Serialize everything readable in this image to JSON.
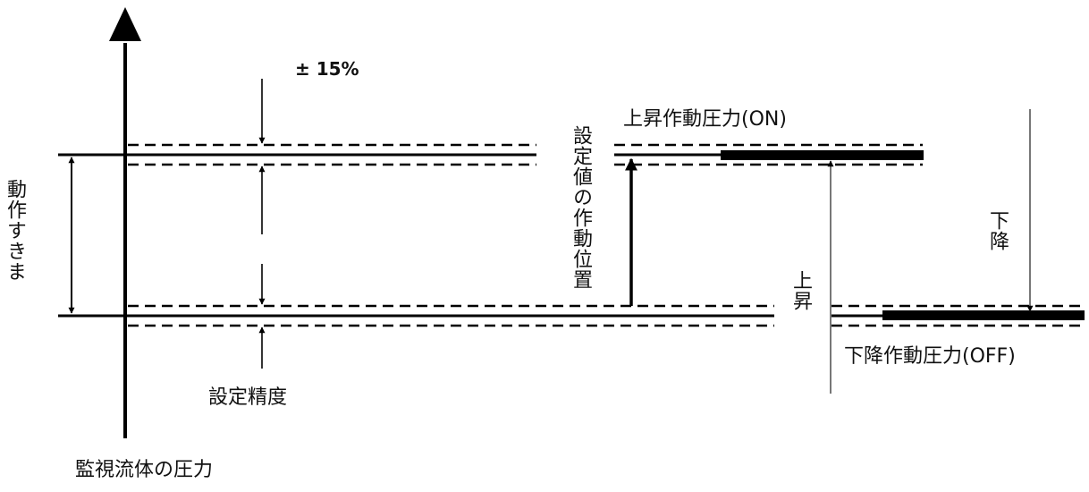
{
  "labels": {
    "tolerance": "± 15%",
    "on_pressure": "上昇作動圧力(ON)",
    "off_pressure": "下降作動圧力(OFF)",
    "setpoint_position": "設定値の作動位置",
    "differential": "動作すきま",
    "rising": "上昇",
    "falling": "下降",
    "setting_accuracy": "設定精度",
    "fluid_pressure": "監視流体の圧力"
  },
  "colors": {
    "line": "#000000",
    "thin_line": "#555555"
  }
}
